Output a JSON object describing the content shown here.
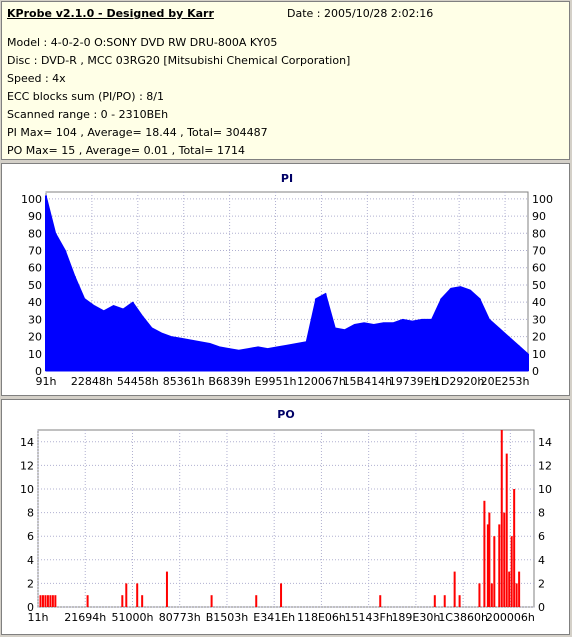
{
  "header": {
    "title": "KProbe v2.1.0 - Designed by Karr",
    "date": "Date : 2005/10/28 2:02:16",
    "model": "Model : 4-0-2-0 O:SONY     DVD RW DRU-800A  KY05",
    "disc": "Disc : DVD-R , MCC 03RG20   [Mitsubishi Chemical Corporation]",
    "speed": "Speed : 4x",
    "ecc": "ECC blocks sum (PI/PO) : 8/1",
    "range": "Scanned range : 0 - 2310BEh",
    "pi_stats": "PI Max= 104 , Average= 18.44 , Total= 304487",
    "po_stats": "PO Max= 15 , Average= 0.01 , Total= 1714"
  },
  "chart_data": [
    {
      "type": "area",
      "title": "PI",
      "color": "#0000ff",
      "ylim": [
        0,
        104
      ],
      "yticks": [
        0,
        10,
        20,
        30,
        40,
        50,
        60,
        70,
        80,
        90,
        100
      ],
      "xticks": [
        "91h",
        "22848h",
        "54458h",
        "85361h",
        "B6839h",
        "E9951h",
        "120067h",
        "15B414h",
        "19739Eh",
        "1D2920h",
        "20E253h"
      ],
      "grid": true,
      "x": [
        0,
        2,
        4,
        6,
        8,
        10,
        12,
        14,
        16,
        18,
        20,
        22,
        24,
        26,
        28,
        30,
        32,
        34,
        36,
        38,
        40,
        42,
        44,
        46,
        48,
        50,
        52,
        54,
        56,
        58,
        60,
        62,
        64,
        66,
        68,
        70,
        72,
        74,
        76,
        78,
        80,
        82,
        84,
        86,
        88,
        90,
        92,
        94,
        96,
        98,
        100
      ],
      "values": [
        102,
        80,
        70,
        55,
        42,
        38,
        35,
        38,
        36,
        40,
        32,
        25,
        22,
        20,
        19,
        18,
        17,
        16,
        14,
        13,
        12,
        13,
        14,
        13,
        14,
        15,
        16,
        17,
        42,
        45,
        25,
        24,
        27,
        28,
        27,
        28,
        28,
        30,
        29,
        30,
        30,
        42,
        48,
        49,
        47,
        42,
        30,
        25,
        20,
        15,
        10
      ]
    },
    {
      "type": "bar",
      "title": "PO",
      "color": "#ff0000",
      "ylim": [
        0,
        15
      ],
      "yticks": [
        0,
        2,
        4,
        6,
        8,
        10,
        12,
        14
      ],
      "xticks": [
        "11h",
        "21694h",
        "51000h",
        "80773h",
        "B1503h",
        "E341Eh",
        "118E06h",
        "15143Fh",
        "189E30h",
        "1C3860h",
        "200006h"
      ],
      "grid": true,
      "x": [
        0.5,
        1,
        1.5,
        2,
        2.5,
        3,
        3.5,
        10,
        17,
        17.8,
        20,
        21,
        26,
        35,
        44,
        49,
        69,
        80,
        82,
        84,
        85,
        89,
        90,
        90.7,
        91,
        91.5,
        92,
        93,
        93.5,
        94,
        94.5,
        95,
        95.5,
        96,
        96.5,
        97
      ],
      "values": [
        1,
        1,
        1,
        1,
        1,
        1,
        1,
        1,
        1,
        2,
        2,
        1,
        3,
        1,
        1,
        2,
        1,
        1,
        1,
        3,
        1,
        2,
        9,
        7,
        8,
        2,
        6,
        7,
        15,
        8,
        13,
        3,
        6,
        10,
        2,
        3
      ]
    }
  ]
}
